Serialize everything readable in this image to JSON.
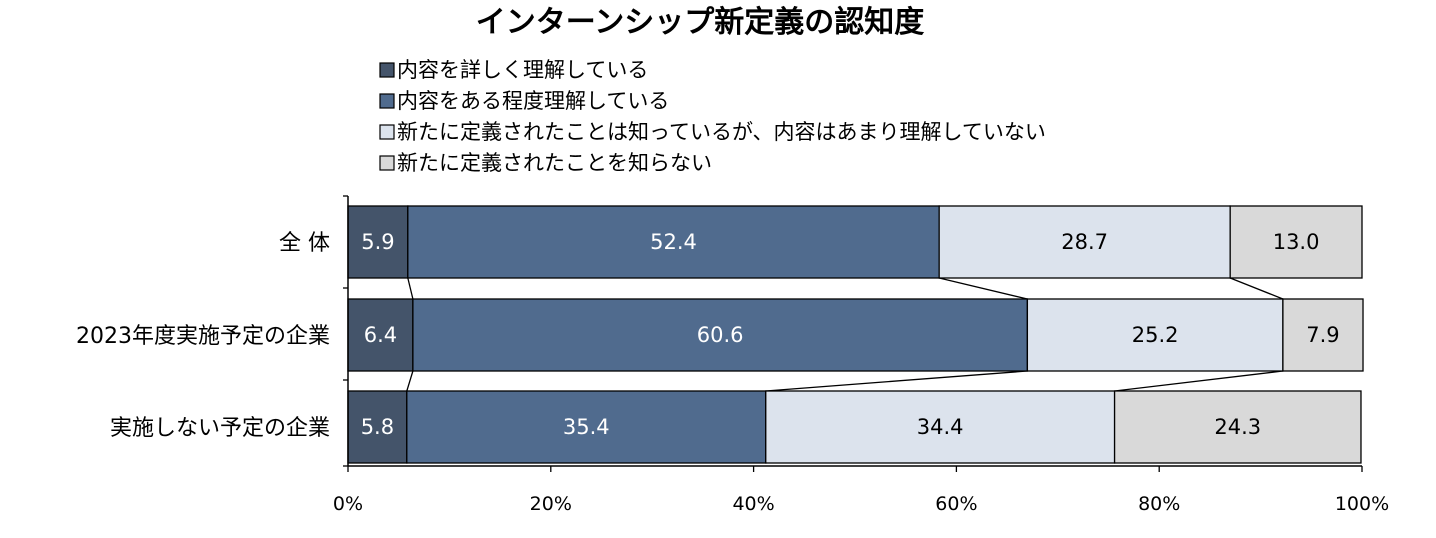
{
  "chart_data": {
    "type": "bar",
    "orientation": "horizontal",
    "stacked": "100%",
    "title": "インターンシップ新定義の認知度",
    "categories": [
      "全 体",
      "2023年度実施予定の企業",
      "実施しない予定の企業"
    ],
    "series": [
      {
        "name": "内容を詳しく理解している",
        "color": "#44546a",
        "values": [
          5.9,
          6.4,
          5.8
        ]
      },
      {
        "name": "内容をある程度理解している",
        "color": "#506b8e",
        "values": [
          52.4,
          60.6,
          35.4
        ]
      },
      {
        "name": "新たに定義されたことは知っているが、内容はあまり理解していない",
        "color": "#dce3ed",
        "values": [
          28.7,
          25.2,
          34.4
        ]
      },
      {
        "name": "新たに定義されたことを知らない",
        "color": "#d9d9d9",
        "values": [
          13.0,
          7.9,
          24.3
        ]
      }
    ],
    "value_labels": [
      [
        "5.9",
        "52.4",
        "28.7",
        "13.0"
      ],
      [
        "6.4",
        "60.6",
        "25.2",
        "7.9"
      ],
      [
        "5.8",
        "35.4",
        "34.4",
        "24.3"
      ]
    ],
    "label_colors": [
      "#ffffff",
      "#ffffff",
      "#000000",
      "#000000"
    ],
    "xlim": [
      0,
      100
    ],
    "xticks": [
      "0%",
      "20%",
      "40%",
      "60%",
      "80%",
      "100%"
    ],
    "series_lines": true,
    "legend_position": "top",
    "grid": false
  }
}
